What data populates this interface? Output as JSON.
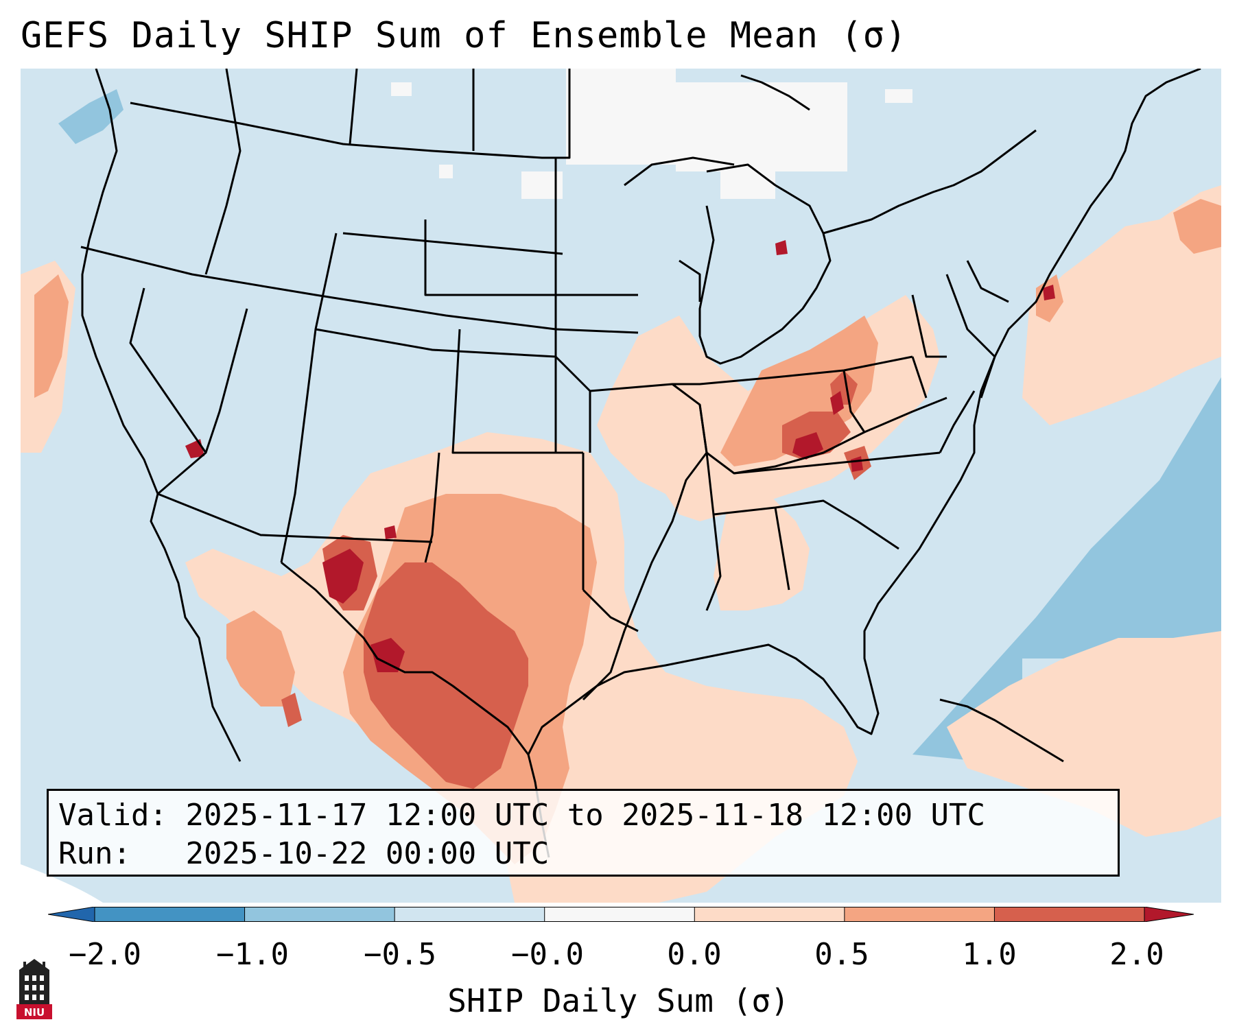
{
  "title": "GEFS Daily SHIP Sum of Ensemble Mean (σ)",
  "info": {
    "valid_label": "Valid:",
    "valid_value": "2025-11-17 12:00 UTC to 2025-11-18 12:00 UTC",
    "run_label": "Run:",
    "run_value": "2025-10-22 00:00 UTC"
  },
  "colorbar": {
    "label": "SHIP Daily Sum (σ)",
    "ticks": [
      "−2.0",
      "−1.0",
      "−0.5",
      "−0.0",
      "0.0",
      "0.5",
      "1.0",
      "2.0"
    ],
    "bins": [
      {
        "range": "< -2.0",
        "color": "#2166ac"
      },
      {
        "range": "-2.0 to -1.0",
        "color": "#4393c3"
      },
      {
        "range": "-1.0 to -0.5",
        "color": "#92c5de"
      },
      {
        "range": "-0.5 to -0.0",
        "color": "#d1e5f0"
      },
      {
        "range": "-0.0 to 0.0",
        "color": "#f7f7f7"
      },
      {
        "range": "0.0 to 0.5",
        "color": "#fddbc7"
      },
      {
        "range": "0.5 to 1.0",
        "color": "#f4a582"
      },
      {
        "range": "1.0 to 2.0",
        "color": "#d6604d"
      },
      {
        "range": "> 2.0",
        "color": "#b2182b"
      }
    ]
  },
  "logo": {
    "text": "NIU",
    "icon": "university-tower-icon"
  }
}
